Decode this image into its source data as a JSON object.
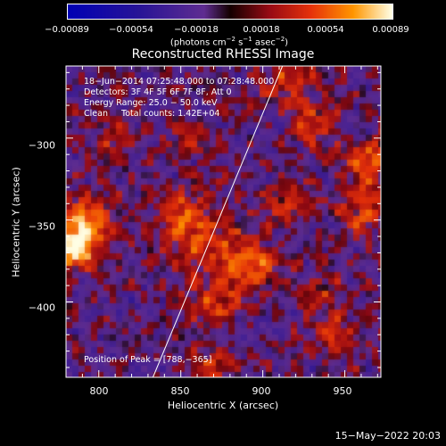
{
  "chart_data": {
    "type": "heatmap",
    "title": "Reconstructed RHESSI Image",
    "xlabel": "Heliocentric X (arcsec)",
    "ylabel": "Heliocentric Y (arcsec)",
    "xlim": [
      780,
      972
    ],
    "ylim": [
      -446,
      -256
    ],
    "x_ticks": [
      "800",
      "850",
      "900",
      "950"
    ],
    "x_tick_values": [
      800,
      850,
      900,
      950
    ],
    "y_ticks": [
      "−300",
      "−350",
      "−400"
    ],
    "y_tick_values": [
      -300,
      -350,
      -400
    ],
    "colorbar": {
      "ticks": [
        "−0.00089",
        "−0.00054",
        "−0.00018",
        "0.00018",
        "0.00054",
        "0.00089"
      ],
      "tick_values": [
        -0.00089,
        -0.00054,
        -0.00018,
        0.00018,
        0.00054,
        0.00089
      ],
      "range": [
        -0.00089,
        0.00089
      ],
      "units_prefix": "(photons cm",
      "units_exp1": "−2",
      "units_mid": " s",
      "units_exp2": "−1",
      "units_mid2": " asec",
      "units_exp3": "−2",
      "units_suffix": ")"
    },
    "info_lines": [
      "18−Jun−2014 07:25:48.000 to 07:28:48.000",
      "Detectors: 3F 4F 5F 6F 7F 8F, Att 0",
      "Energy Range: 25.0 − 50.0 keV",
      "Clean     Total counts: 1.42E+04"
    ],
    "peak_label": "Position of Peak = [788,−365]",
    "peak_position": [
      788,
      -365
    ],
    "limb_line": [
      [
        833,
        -446
      ],
      [
        912,
        -256
      ]
    ],
    "bright_sources": [
      {
        "x": 790,
        "y": -355,
        "sigma": 11,
        "amp": 1.0
      },
      {
        "x": 785,
        "y": -370,
        "sigma": 7,
        "amp": 0.85
      },
      {
        "x": 965,
        "y": -315,
        "sigma": 10,
        "amp": 0.65
      },
      {
        "x": 915,
        "y": -265,
        "sigma": 12,
        "amp": 0.4
      },
      {
        "x": 930,
        "y": -290,
        "sigma": 10,
        "amp": 0.4
      },
      {
        "x": 960,
        "y": -345,
        "sigma": 10,
        "amp": 0.5
      },
      {
        "x": 885,
        "y": -375,
        "sigma": 12,
        "amp": 0.45
      },
      {
        "x": 860,
        "y": -360,
        "sigma": 14,
        "amp": 0.42
      },
      {
        "x": 870,
        "y": -400,
        "sigma": 12,
        "amp": 0.4
      },
      {
        "x": 850,
        "y": -345,
        "sigma": 10,
        "amp": 0.38
      },
      {
        "x": 915,
        "y": -340,
        "sigma": 10,
        "amp": 0.4
      },
      {
        "x": 945,
        "y": -420,
        "sigma": 10,
        "amp": 0.35
      },
      {
        "x": 870,
        "y": -440,
        "sigma": 8,
        "amp": 0.4
      },
      {
        "x": 810,
        "y": -300,
        "sigma": 9,
        "amp": 0.28
      },
      {
        "x": 855,
        "y": -300,
        "sigma": 9,
        "amp": 0.25
      },
      {
        "x": 900,
        "y": -380,
        "sigma": 9,
        "amp": 0.38
      },
      {
        "x": 935,
        "y": -395,
        "sigma": 9,
        "amp": 0.32
      }
    ],
    "colors": {
      "negative_deep": "#0000b0",
      "negative_mid": "#3a1f7a",
      "background": "#5c2c8c",
      "dark": "#1a0000",
      "mid": "#b01818",
      "bright": "#ff9a00",
      "peak": "#ffff66",
      "axis": "#ffffff"
    }
  },
  "footer": {
    "date": "15−May−2022 20:03"
  }
}
